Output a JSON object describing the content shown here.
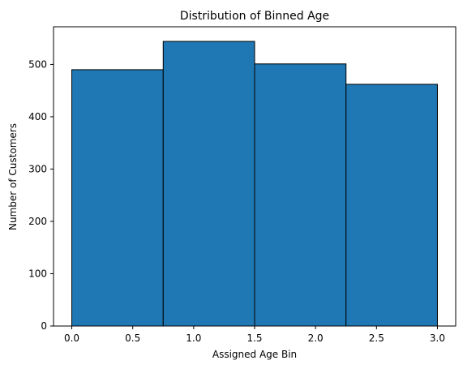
{
  "chart_data": {
    "type": "bar",
    "title": "Distribution of Binned Age",
    "xlabel": "Assigned Age Bin",
    "ylabel": "Number of Customers",
    "xlim": [
      -0.15,
      3.15
    ],
    "ylim": [
      0,
      572
    ],
    "grid": false,
    "colors": {
      "bar_fill": "#1f77b4",
      "bar_edge": "#000000"
    },
    "bins": [
      {
        "start": 0.0,
        "end": 0.75,
        "value": 490
      },
      {
        "start": 0.75,
        "end": 1.5,
        "value": 544
      },
      {
        "start": 1.5,
        "end": 2.25,
        "value": 501
      },
      {
        "start": 2.25,
        "end": 3.0,
        "value": 462
      }
    ],
    "x_ticks": [
      {
        "value": 0.0,
        "label": "0.0"
      },
      {
        "value": 0.5,
        "label": "0.5"
      },
      {
        "value": 1.0,
        "label": "1.0"
      },
      {
        "value": 1.5,
        "label": "1.5"
      },
      {
        "value": 2.0,
        "label": "2.0"
      },
      {
        "value": 2.5,
        "label": "2.5"
      },
      {
        "value": 3.0,
        "label": "3.0"
      }
    ],
    "y_ticks": [
      {
        "value": 0,
        "label": "0"
      },
      {
        "value": 100,
        "label": "100"
      },
      {
        "value": 200,
        "label": "200"
      },
      {
        "value": 300,
        "label": "300"
      },
      {
        "value": 400,
        "label": "400"
      },
      {
        "value": 500,
        "label": "500"
      }
    ]
  }
}
